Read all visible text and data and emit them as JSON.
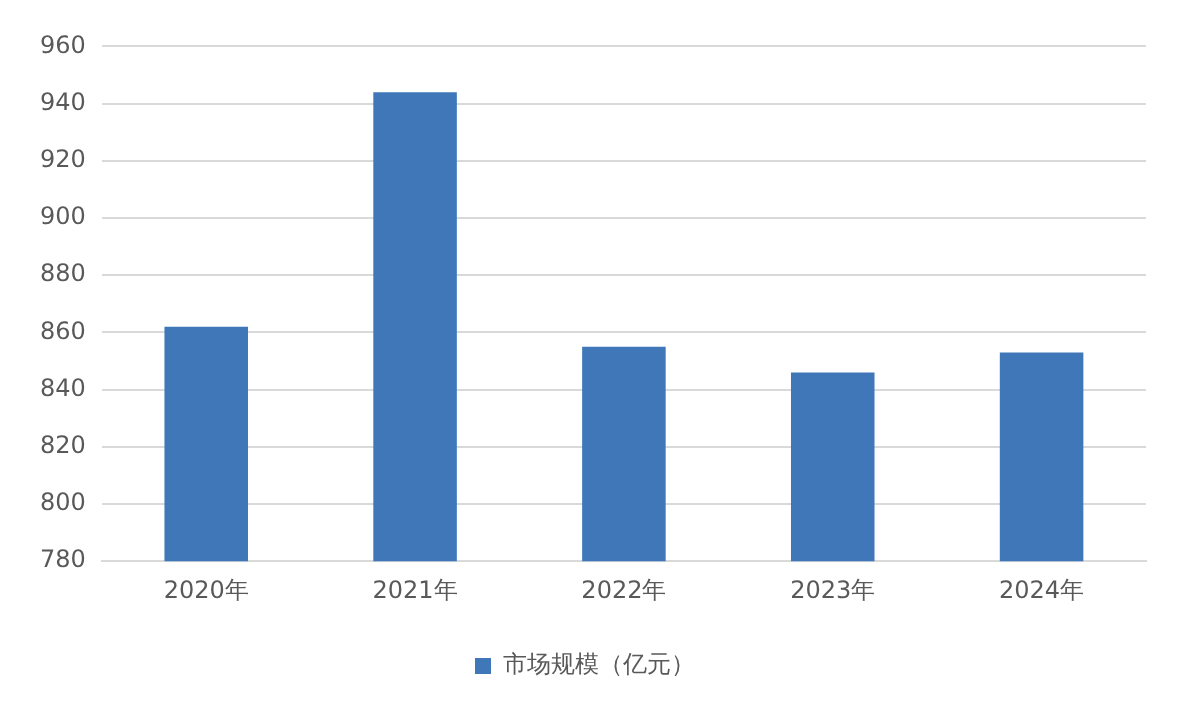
{
  "chart_data": {
    "type": "bar",
    "categories": [
      "2020年",
      "2021年",
      "2022年",
      "2023年",
      "2024年"
    ],
    "series": [
      {
        "name": "市场规模（亿元）",
        "color": "#3f77b8",
        "values": [
          862,
          944,
          855,
          846,
          853
        ]
      }
    ],
    "ylim": [
      780,
      960
    ],
    "yticks": [
      780,
      800,
      820,
      840,
      860,
      880,
      900,
      920,
      940,
      960
    ],
    "grid": "y",
    "legend": "bottom"
  }
}
